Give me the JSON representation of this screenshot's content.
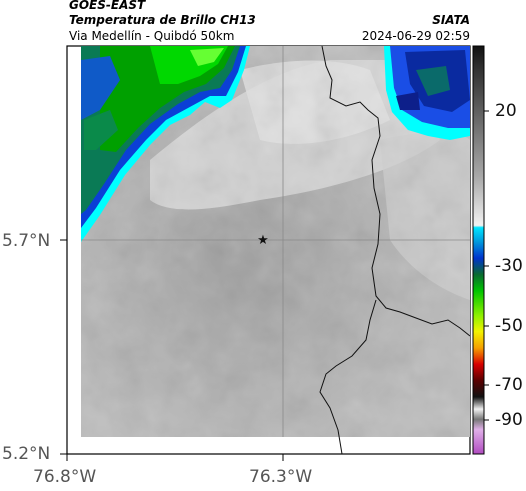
{
  "header": {
    "satellite": "GOES-EAST",
    "product": "Temperatura de Brillo CH13",
    "region": "Via Medellín - Quibdó 50km",
    "agency": "SIATA",
    "datetime": "2024-06-29 02:59"
  },
  "map": {
    "lat_labels": [
      "5.7°N",
      "5.2°N"
    ],
    "lon_labels": [
      "76.8°W",
      "76.3°W"
    ],
    "marker": "star-icon"
  },
  "colorbar": {
    "ticks": [
      "20",
      "-30",
      "-50",
      "-70",
      "-90"
    ],
    "range": [
      -95,
      45
    ],
    "colors": {
      "warm_gray": "#dcdcdc",
      "cyan": "#00e5ff",
      "blue": "#0033cc",
      "green": "#00c400",
      "yellow": "#f2f200",
      "red": "#d80000",
      "magenta": "#b04cc0"
    }
  }
}
